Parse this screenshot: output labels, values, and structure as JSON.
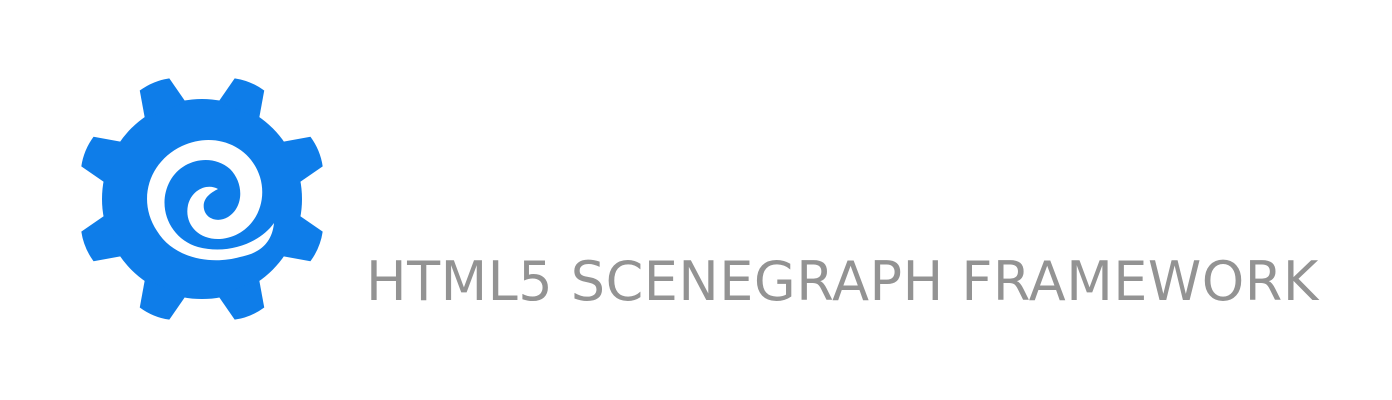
{
  "logo": {
    "icon": "gear-spiral-icon",
    "color": "#0E7DE9"
  },
  "tagline": {
    "text": "HTML5 SCENEGRAPH FRAMEWORK",
    "color": "#939393"
  }
}
